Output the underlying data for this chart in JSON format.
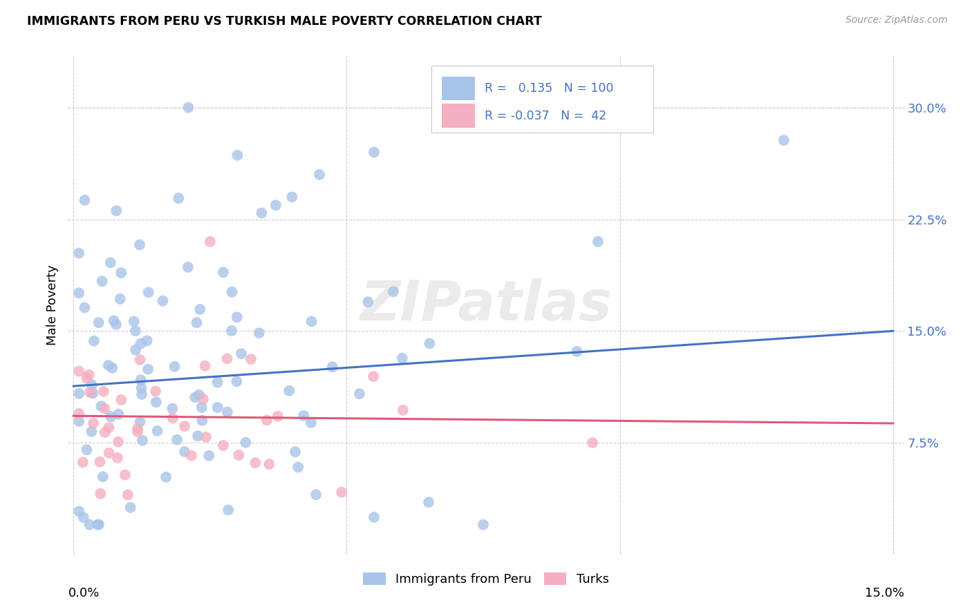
{
  "title": "IMMIGRANTS FROM PERU VS TURKISH MALE POVERTY CORRELATION CHART",
  "source": "Source: ZipAtlas.com",
  "ylabel": "Male Poverty",
  "yticks": [
    0.075,
    0.15,
    0.225,
    0.3
  ],
  "ytick_labels": [
    "7.5%",
    "15.0%",
    "22.5%",
    "30.0%"
  ],
  "xlim": [
    0.0,
    0.15
  ],
  "ylim": [
    0.0,
    0.33
  ],
  "legend_blue_label": "Immigrants from Peru",
  "legend_pink_label": "Turks",
  "legend_R_blue": "0.135",
  "legend_N_blue": "100",
  "legend_R_pink": "-0.037",
  "legend_N_pink": "42",
  "blue_color": "#a8c4e8",
  "pink_color": "#f4afc0",
  "line_blue": "#4472c4",
  "line_pink": "#e05878",
  "watermark": "ZIPatlas",
  "blue_line_x0": 0.0,
  "blue_line_y0": 0.113,
  "blue_line_x1": 0.15,
  "blue_line_y1": 0.15,
  "pink_line_x0": 0.0,
  "pink_line_y0": 0.093,
  "pink_line_x1": 0.15,
  "pink_line_y1": 0.088,
  "grid_color": "#cccccc",
  "tick_label_color": "#4472c4"
}
